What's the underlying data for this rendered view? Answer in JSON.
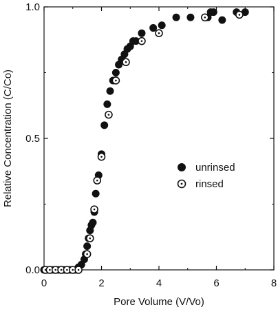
{
  "chart_data": {
    "type": "scatter",
    "title": "",
    "xlabel": "Pore Volume (V/Vo)",
    "ylabel": "Relative Concentration (C/Co)",
    "xlim": [
      0,
      8
    ],
    "ylim": [
      0,
      1.0
    ],
    "x_ticks": [
      0,
      2,
      4,
      6,
      8
    ],
    "y_ticks": [
      0.0,
      0.5,
      1.0
    ],
    "x_tick_labels": [
      "0",
      "2",
      "4",
      "6",
      "8"
    ],
    "y_tick_labels": [
      "0.0",
      "0.5",
      "1.0"
    ],
    "grid": false,
    "legend_position": "center-right",
    "series": [
      {
        "name": "unrinsed",
        "marker": "filled-circle",
        "color": "#111111",
        "x": [
          0.0,
          0.1,
          0.2,
          0.3,
          0.4,
          0.5,
          0.6,
          0.7,
          0.8,
          0.9,
          1.0,
          1.1,
          1.2,
          1.3,
          1.4,
          1.45,
          1.5,
          1.55,
          1.6,
          1.65,
          1.7,
          1.75,
          1.8,
          1.9,
          2.0,
          2.1,
          2.2,
          2.3,
          2.4,
          2.5,
          2.6,
          2.7,
          2.8,
          2.9,
          3.0,
          3.1,
          3.2,
          3.4,
          3.8,
          4.1,
          4.6,
          5.1,
          5.7,
          5.8,
          5.9,
          6.2,
          6.7,
          7.0
        ],
        "y": [
          0.0,
          0.0,
          0.0,
          0.0,
          0.0,
          0.0,
          0.0,
          0.0,
          0.0,
          0.0,
          0.0,
          0.0,
          0.01,
          0.02,
          0.04,
          0.06,
          0.09,
          0.12,
          0.15,
          0.17,
          0.18,
          0.22,
          0.29,
          0.36,
          0.44,
          0.55,
          0.63,
          0.68,
          0.72,
          0.75,
          0.78,
          0.8,
          0.82,
          0.84,
          0.85,
          0.87,
          0.87,
          0.9,
          0.92,
          0.93,
          0.96,
          0.96,
          0.96,
          0.98,
          0.98,
          0.95,
          0.98,
          0.98
        ]
      },
      {
        "name": "rinsed",
        "marker": "open-circle-dot",
        "color": "#111111",
        "x": [
          0.05,
          0.2,
          0.4,
          0.6,
          0.8,
          1.0,
          1.2,
          1.5,
          1.6,
          1.75,
          1.85,
          2.0,
          2.25,
          2.5,
          2.85,
          3.4,
          4.0,
          5.6,
          6.8
        ],
        "y": [
          0.0,
          0.0,
          0.0,
          0.0,
          0.0,
          0.0,
          0.0,
          0.06,
          0.12,
          0.23,
          0.34,
          0.43,
          0.59,
          0.72,
          0.79,
          0.87,
          0.9,
          0.96,
          0.97
        ]
      }
    ]
  }
}
